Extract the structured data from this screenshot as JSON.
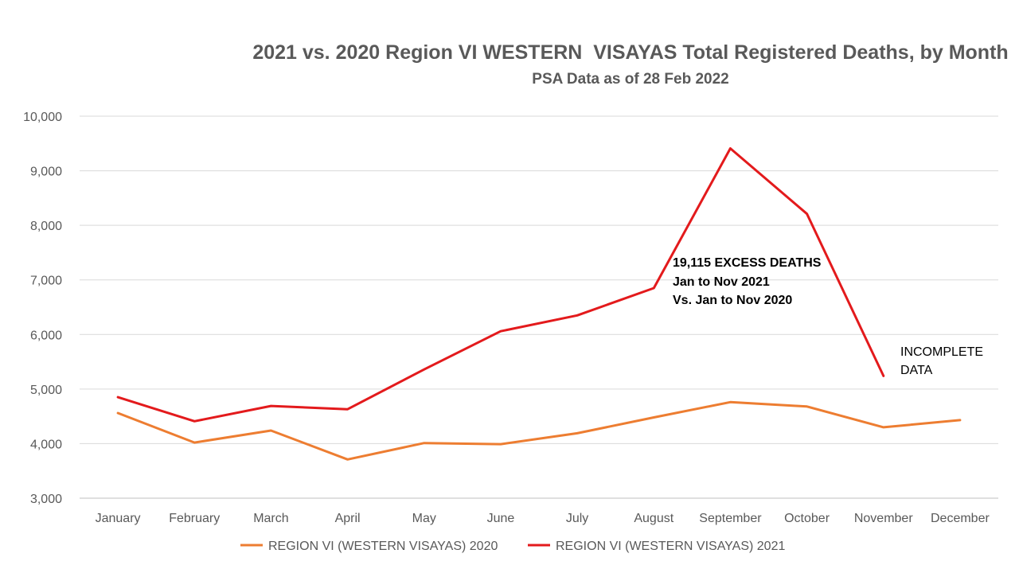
{
  "chart_data": {
    "type": "line",
    "title": "2021 vs. 2020 Region VI WESTERN  VISAYAS Total Registered Deaths, by Month",
    "subtitle": "PSA Data as of 28 Feb 2022",
    "xlabel": "",
    "ylabel": "",
    "categories": [
      "January",
      "February",
      "March",
      "April",
      "May",
      "June",
      "July",
      "August",
      "September",
      "October",
      "November",
      "December"
    ],
    "ylim": [
      3000,
      10000
    ],
    "yticks": [
      3000,
      4000,
      5000,
      6000,
      7000,
      8000,
      9000,
      10000
    ],
    "ytick_labels": [
      "3,000",
      "4,000",
      "5,000",
      "6,000",
      "7,000",
      "8,000",
      "9,000",
      "10,000"
    ],
    "grid": true,
    "legend_position": "bottom",
    "series": [
      {
        "name": "REGION VI (WESTERN VISAYAS) 2020",
        "color": "#ED7D31",
        "values": [
          4560,
          4020,
          4240,
          3710,
          4010,
          3990,
          4190,
          4480,
          4760,
          4680,
          4300,
          4430
        ]
      },
      {
        "name": "REGION VI (WESTERN VISAYAS) 2021",
        "color": "#E31A1C",
        "values": [
          4850,
          4410,
          4690,
          4630,
          5360,
          6060,
          6350,
          6850,
          9410,
          8210,
          5240,
          null
        ]
      }
    ],
    "annotations": [
      {
        "lines": [
          "19,115 EXCESS DEATHS",
          "Jan to Nov 2021",
          "Vs. Jan to Nov 2020"
        ],
        "bold": true
      },
      {
        "lines": [
          "INCOMPLETE",
          "DATA"
        ],
        "bold": false
      }
    ]
  }
}
